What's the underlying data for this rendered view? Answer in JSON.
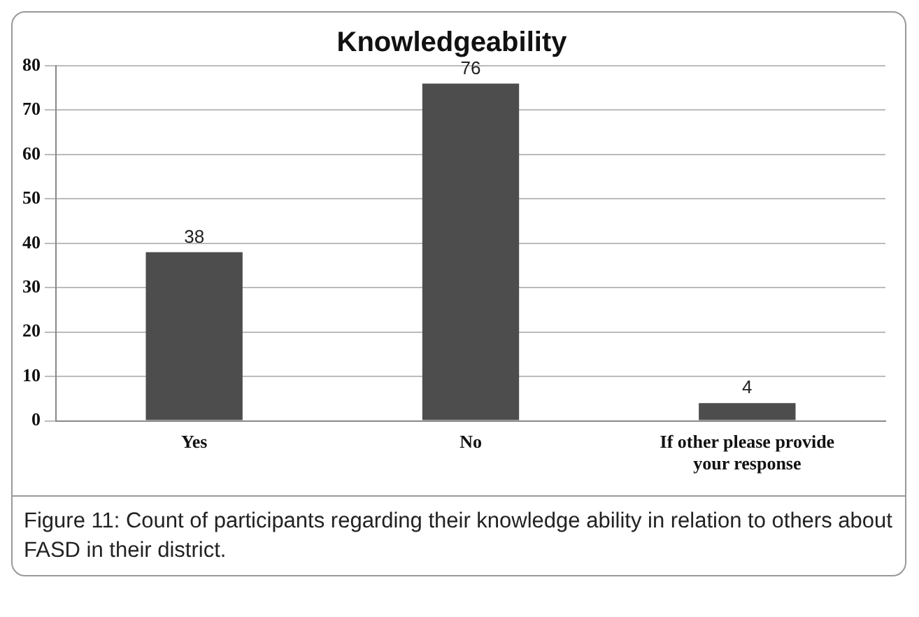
{
  "chart_data": {
    "type": "bar",
    "title": "Knowledgeability",
    "categories": [
      "Yes",
      "No",
      "If other please provide your response"
    ],
    "values": [
      38,
      76,
      4
    ],
    "color": "#4d4d4d",
    "ylim": [
      0,
      80
    ],
    "yticks": [
      0,
      10,
      20,
      30,
      40,
      50,
      60,
      70,
      80
    ],
    "grid": "y",
    "data_labels": true,
    "annotations": [
      "Figure 11: Count of participants regarding their knowledge ability in relation to others about FASD in their district."
    ]
  }
}
